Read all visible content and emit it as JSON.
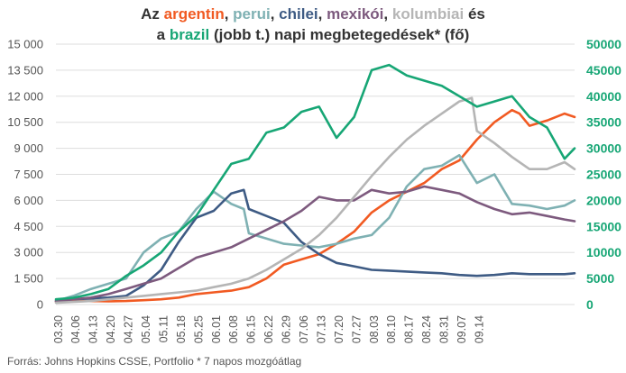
{
  "chart_data": {
    "type": "line",
    "title": {
      "line1": [
        "Az ",
        "argentin",
        ", ",
        "perui",
        ", ",
        "chilei",
        ", ",
        "mexikói",
        ", ",
        "kolumbiai",
        " és"
      ],
      "line2": [
        "a ",
        "brazil",
        " (jobb t.) napi megbetegedések* (fő)"
      ]
    },
    "source": "Forrás: Johns Hopkins CSSE, Portfolio   * 7 napos mozgóátlag",
    "x_tick_labels": [
      "03.30",
      "04.06",
      "04.13",
      "04.20",
      "04.27",
      "05.04",
      "05.11",
      "05.18",
      "05.25",
      "06.01",
      "06.08",
      "06.15",
      "06.22",
      "06.29",
      "07.06",
      "07.13",
      "07.20",
      "07.27",
      "08.03",
      "08.10",
      "08.17",
      "08.24",
      "08.31",
      "09.07",
      "09.14"
    ],
    "y_left": {
      "min": 0,
      "max": 15000,
      "ticks": [
        "0",
        "1 500",
        "3 000",
        "4 500",
        "6 000",
        "7 500",
        "9 000",
        "10 500",
        "12 000",
        "13 500",
        "15 000"
      ]
    },
    "y_right": {
      "min": 0,
      "max": 50000,
      "ticks": [
        "0",
        "5000",
        "10000",
        "15000",
        "20000",
        "25000",
        "30000",
        "35000",
        "40000",
        "45000",
        "50000"
      ]
    },
    "grid": true,
    "series": [
      {
        "name": "argentin",
        "color": "#f15a22",
        "axis": "left",
        "points": [
          [
            0,
            150
          ],
          [
            7,
            180
          ],
          [
            14,
            200
          ],
          [
            21,
            180
          ],
          [
            28,
            200
          ],
          [
            35,
            250
          ],
          [
            42,
            300
          ],
          [
            49,
            400
          ],
          [
            56,
            600
          ],
          [
            63,
            700
          ],
          [
            70,
            800
          ],
          [
            77,
            1000
          ],
          [
            84,
            1500
          ],
          [
            91,
            2300
          ],
          [
            98,
            2600
          ],
          [
            105,
            2900
          ],
          [
            112,
            3500
          ],
          [
            119,
            4200
          ],
          [
            126,
            5300
          ],
          [
            133,
            6000
          ],
          [
            140,
            6500
          ],
          [
            147,
            7000
          ],
          [
            154,
            7800
          ],
          [
            161,
            8300
          ],
          [
            168,
            9500
          ],
          [
            175,
            10500
          ],
          [
            182,
            11200
          ],
          [
            185,
            11000
          ],
          [
            189,
            10300
          ],
          [
            196,
            10600
          ],
          [
            203,
            11000
          ],
          [
            207,
            10800
          ]
        ]
      },
      {
        "name": "perui",
        "color": "#7fb1b3",
        "axis": "left",
        "points": [
          [
            0,
            200
          ],
          [
            7,
            500
          ],
          [
            14,
            900
          ],
          [
            21,
            1200
          ],
          [
            28,
            1500
          ],
          [
            35,
            3000
          ],
          [
            42,
            3800
          ],
          [
            49,
            4200
          ],
          [
            56,
            5500
          ],
          [
            63,
            6500
          ],
          [
            70,
            5800
          ],
          [
            75,
            5500
          ],
          [
            77,
            4100
          ],
          [
            84,
            3800
          ],
          [
            91,
            3500
          ],
          [
            98,
            3400
          ],
          [
            105,
            3300
          ],
          [
            112,
            3500
          ],
          [
            119,
            3800
          ],
          [
            126,
            4000
          ],
          [
            133,
            5000
          ],
          [
            140,
            6800
          ],
          [
            147,
            7800
          ],
          [
            154,
            8000
          ],
          [
            161,
            8600
          ],
          [
            168,
            7000
          ],
          [
            175,
            7500
          ],
          [
            182,
            5800
          ],
          [
            189,
            5700
          ],
          [
            196,
            5500
          ],
          [
            203,
            5700
          ],
          [
            207,
            6000
          ]
        ]
      },
      {
        "name": "chilei",
        "color": "#3e5b84",
        "axis": "left",
        "points": [
          [
            0,
            200
          ],
          [
            7,
            300
          ],
          [
            14,
            350
          ],
          [
            21,
            400
          ],
          [
            28,
            500
          ],
          [
            35,
            1100
          ],
          [
            42,
            2000
          ],
          [
            49,
            3600
          ],
          [
            56,
            5000
          ],
          [
            63,
            5400
          ],
          [
            70,
            6400
          ],
          [
            75,
            6600
          ],
          [
            77,
            5500
          ],
          [
            84,
            5100
          ],
          [
            91,
            4700
          ],
          [
            98,
            3600
          ],
          [
            105,
            2900
          ],
          [
            112,
            2400
          ],
          [
            119,
            2200
          ],
          [
            126,
            2000
          ],
          [
            133,
            1950
          ],
          [
            140,
            1900
          ],
          [
            147,
            1850
          ],
          [
            154,
            1800
          ],
          [
            161,
            1700
          ],
          [
            168,
            1650
          ],
          [
            175,
            1700
          ],
          [
            182,
            1800
          ],
          [
            189,
            1750
          ],
          [
            196,
            1750
          ],
          [
            203,
            1750
          ],
          [
            207,
            1800
          ]
        ]
      },
      {
        "name": "mexikói",
        "color": "#7d5a7e",
        "axis": "left",
        "points": [
          [
            0,
            200
          ],
          [
            7,
            300
          ],
          [
            14,
            400
          ],
          [
            21,
            600
          ],
          [
            28,
            900
          ],
          [
            35,
            1200
          ],
          [
            42,
            1500
          ],
          [
            49,
            2100
          ],
          [
            56,
            2700
          ],
          [
            63,
            3000
          ],
          [
            70,
            3300
          ],
          [
            77,
            3800
          ],
          [
            84,
            4300
          ],
          [
            91,
            4800
          ],
          [
            98,
            5400
          ],
          [
            105,
            6200
          ],
          [
            112,
            6000
          ],
          [
            119,
            6000
          ],
          [
            126,
            6600
          ],
          [
            133,
            6400
          ],
          [
            140,
            6500
          ],
          [
            147,
            6800
          ],
          [
            154,
            6600
          ],
          [
            161,
            6400
          ],
          [
            168,
            5900
          ],
          [
            175,
            5500
          ],
          [
            182,
            5200
          ],
          [
            189,
            5300
          ],
          [
            196,
            5100
          ],
          [
            203,
            4900
          ],
          [
            207,
            4800
          ]
        ]
      },
      {
        "name": "kolumbiai",
        "color": "#b5b5b5",
        "axis": "left",
        "points": [
          [
            0,
            100
          ],
          [
            7,
            150
          ],
          [
            14,
            200
          ],
          [
            21,
            300
          ],
          [
            28,
            400
          ],
          [
            35,
            500
          ],
          [
            42,
            600
          ],
          [
            49,
            700
          ],
          [
            56,
            800
          ],
          [
            63,
            1000
          ],
          [
            70,
            1200
          ],
          [
            77,
            1500
          ],
          [
            84,
            2000
          ],
          [
            91,
            2600
          ],
          [
            98,
            3200
          ],
          [
            105,
            4000
          ],
          [
            112,
            5000
          ],
          [
            119,
            6200
          ],
          [
            126,
            7400
          ],
          [
            133,
            8500
          ],
          [
            140,
            9500
          ],
          [
            147,
            10300
          ],
          [
            154,
            11000
          ],
          [
            161,
            11700
          ],
          [
            166,
            11900
          ],
          [
            168,
            10000
          ],
          [
            175,
            9300
          ],
          [
            182,
            8500
          ],
          [
            189,
            7800
          ],
          [
            196,
            7800
          ],
          [
            203,
            8200
          ],
          [
            207,
            7800
          ]
        ]
      },
      {
        "name": "brazil",
        "color": "#17a675",
        "axis": "right",
        "points": [
          [
            0,
            1000
          ],
          [
            7,
            1300
          ],
          [
            14,
            2000
          ],
          [
            21,
            3000
          ],
          [
            28,
            5500
          ],
          [
            35,
            7500
          ],
          [
            42,
            10000
          ],
          [
            49,
            14000
          ],
          [
            56,
            17000
          ],
          [
            63,
            22000
          ],
          [
            70,
            27000
          ],
          [
            77,
            28000
          ],
          [
            84,
            33000
          ],
          [
            91,
            34000
          ],
          [
            98,
            37000
          ],
          [
            105,
            38000
          ],
          [
            112,
            32000
          ],
          [
            119,
            36000
          ],
          [
            126,
            45000
          ],
          [
            133,
            46000
          ],
          [
            140,
            44000
          ],
          [
            147,
            43000
          ],
          [
            154,
            42000
          ],
          [
            161,
            40000
          ],
          [
            168,
            38000
          ],
          [
            175,
            39000
          ],
          [
            182,
            40000
          ],
          [
            189,
            36000
          ],
          [
            196,
            34000
          ],
          [
            203,
            28000
          ],
          [
            207,
            30000
          ]
        ]
      }
    ]
  }
}
